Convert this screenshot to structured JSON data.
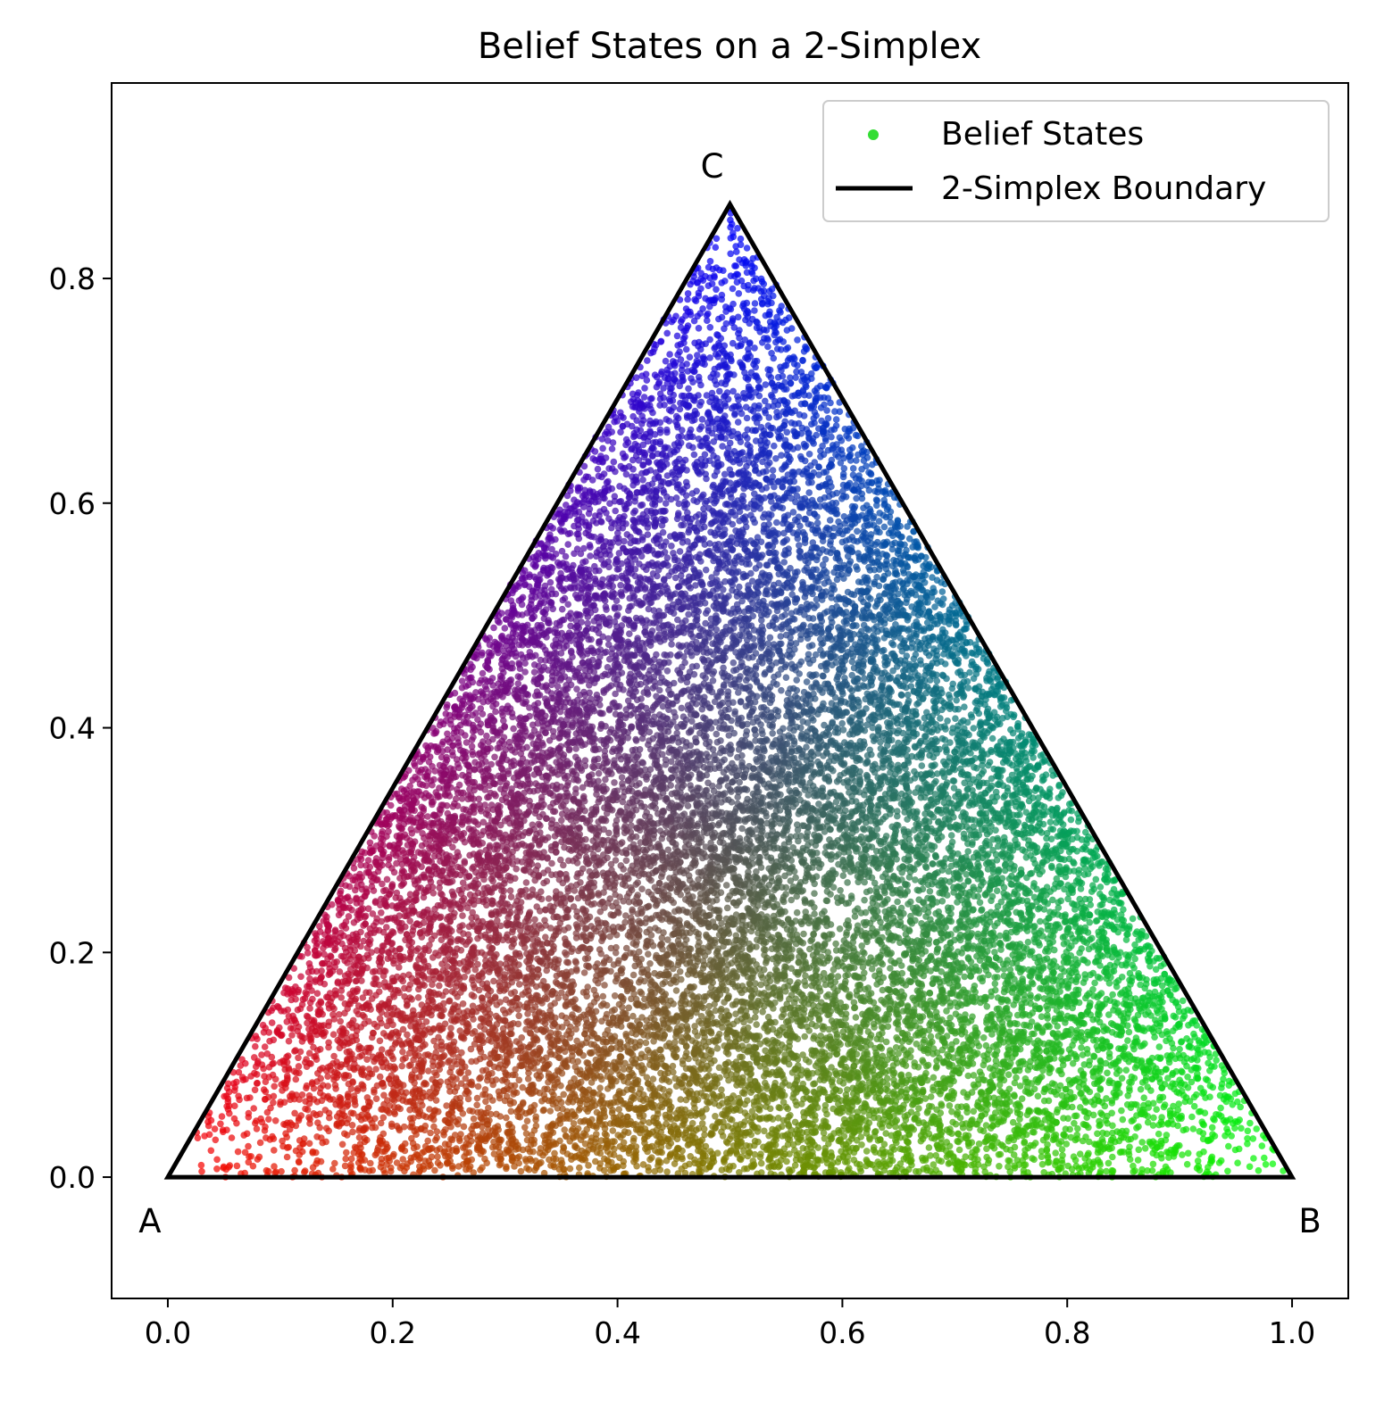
{
  "chart_data": {
    "type": "scatter",
    "title": "Belief States on a 2-Simplex",
    "xlabel": "",
    "ylabel": "",
    "xlim": [
      -0.05,
      1.05
    ],
    "ylim": [
      -0.108,
      0.974
    ],
    "xticks": [
      0.0,
      0.2,
      0.4,
      0.6,
      0.8,
      1.0
    ],
    "xtick_labels": [
      "0.0",
      "0.2",
      "0.4",
      "0.6",
      "0.8",
      "1.0"
    ],
    "yticks": [
      0.0,
      0.2,
      0.4,
      0.6,
      0.8
    ],
    "ytick_labels": [
      "0.0",
      "0.2",
      "0.4",
      "0.6",
      "0.8"
    ],
    "grid": false,
    "legend_position": "top-right",
    "legend": [
      {
        "label": "Belief States",
        "marker": "dot",
        "color": "#33dd33"
      },
      {
        "label": "2-Simplex Boundary",
        "marker": "line",
        "color": "#000000"
      }
    ],
    "vertices": [
      {
        "label": "A",
        "x": 0.0,
        "y": 0.0,
        "color": "#ff0000"
      },
      {
        "label": "B",
        "x": 1.0,
        "y": 0.0,
        "color": "#00ff00"
      },
      {
        "label": "C",
        "x": 0.5,
        "y": 0.866,
        "color": "#0000ff"
      }
    ],
    "boundary": {
      "name": "2-Simplex Boundary",
      "color": "#000000"
    },
    "belief_states": {
      "name": "Belief States",
      "description_of_values": "points colored by barycentric mixture of vertex colors",
      "approx_count": 20000,
      "sample_points": [
        {
          "x": 0.02,
          "y": 0.01
        },
        {
          "x": 0.05,
          "y": 0.03
        },
        {
          "x": 0.12,
          "y": 0.17
        },
        {
          "x": 0.18,
          "y": 0.06
        },
        {
          "x": 0.3,
          "y": 0.45
        },
        {
          "x": 0.28,
          "y": 0.38
        },
        {
          "x": 0.36,
          "y": 0.23
        },
        {
          "x": 0.38,
          "y": 0.19
        },
        {
          "x": 0.4,
          "y": 0.06
        },
        {
          "x": 0.5,
          "y": 0.05
        },
        {
          "x": 0.5,
          "y": 0.09
        },
        {
          "x": 0.5,
          "y": 0.82
        },
        {
          "x": 0.5,
          "y": 0.52
        },
        {
          "x": 0.5,
          "y": 0.45
        },
        {
          "x": 0.47,
          "y": 0.74
        },
        {
          "x": 0.53,
          "y": 0.7
        },
        {
          "x": 0.64,
          "y": 0.24
        },
        {
          "x": 0.63,
          "y": 0.19
        },
        {
          "x": 0.7,
          "y": 0.45
        },
        {
          "x": 0.72,
          "y": 0.38
        },
        {
          "x": 0.82,
          "y": 0.06
        },
        {
          "x": 0.88,
          "y": 0.17
        },
        {
          "x": 0.95,
          "y": 0.03
        },
        {
          "x": 0.98,
          "y": 0.01
        }
      ]
    }
  }
}
